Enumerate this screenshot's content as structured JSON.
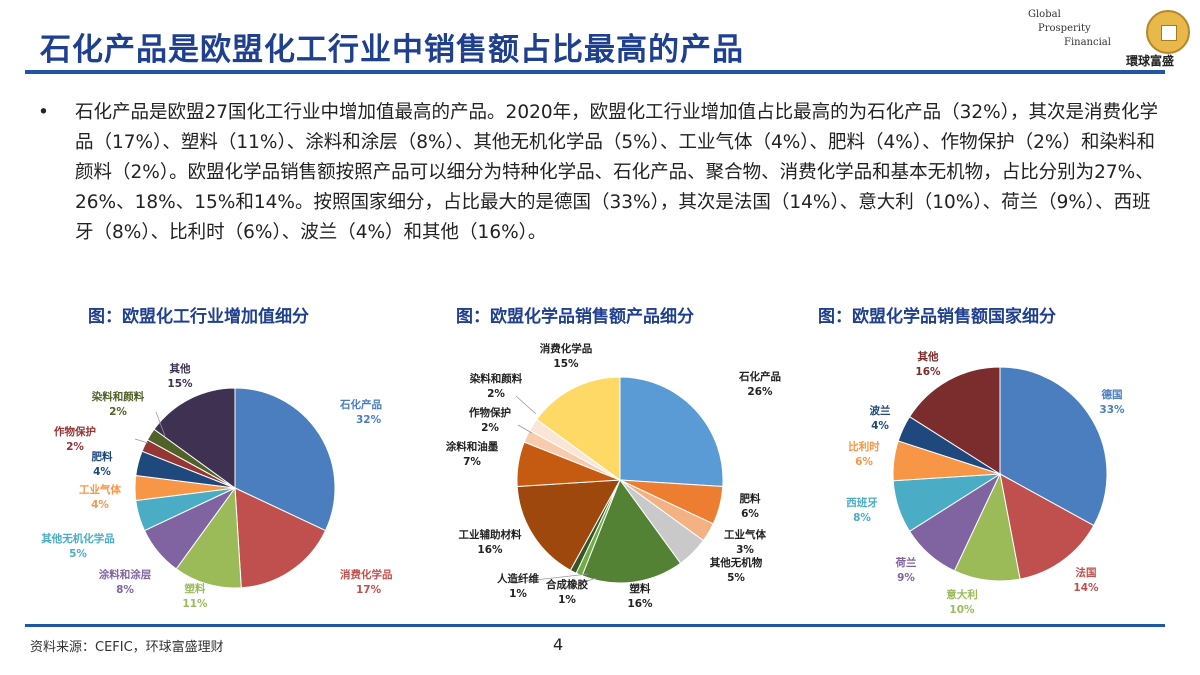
{
  "header": {
    "title": "石化产品是欧盟化工行业中销售额占比最高的产品",
    "logo": {
      "en_lines": [
        "Global",
        "Prosperity",
        "Financial"
      ],
      "cn": "環球富盛",
      "coin_chars": "環球富盛"
    }
  },
  "body": {
    "bullet": "•",
    "paragraph": "石化产品是欧盟27国化工行业中增加值最高的产品。2020年，欧盟化工行业增加值占比最高的为石化产品（32%），其次是消费化学品（17%）、塑料（11%）、涂料和涂层（8%）、其他无机化学品（5%）、工业气体（4%）、肥料（4%）、作物保护（2%）和染料和颜料（2%）。欧盟化学品销售额按照产品可以细分为特种化学品、石化产品、聚合物、消费化学品和基本无机物，占比分别为27%、26%、18%、15%和14%。按照国家细分，占比最大的是德国（33%），其次是法国（14%）、意大利（10%）、荷兰（9%）、西班牙（8%）、比利时（6%）、波兰（4%）和其他（16%）。"
  },
  "chart_data": [
    {
      "type": "pie",
      "title": "图：欧盟化工行业增加值细分",
      "categories": [
        "石化产品",
        "消费化学品",
        "塑料",
        "涂料和涂层",
        "其他无机化学品",
        "工业气体",
        "肥料",
        "作物保护",
        "染料和颜料",
        "其他"
      ],
      "values": [
        32,
        17,
        11,
        8,
        5,
        4,
        4,
        2,
        2,
        15
      ],
      "labels": [
        "32%",
        "17%",
        "11%",
        "8%",
        "5%",
        "4%",
        "4%",
        "2%",
        "2%",
        "15%"
      ],
      "colors": [
        "#4a7ebf",
        "#c0504d",
        "#9bbb59",
        "#8064a2",
        "#4bacc6",
        "#f79646",
        "#1f497d",
        "#943634",
        "#4f6228",
        "#3f3151"
      ],
      "start_angle_deg": 0,
      "direction": "clockwise"
    },
    {
      "type": "pie",
      "title": "图：欧盟化学品销售额产品细分",
      "categories": [
        "石化产品",
        "肥料",
        "工业气体",
        "其他无机物",
        "塑料",
        "合成橡胶",
        "人造纤维",
        "工业辅助材料",
        "涂料和油墨",
        "作物保护",
        "染料和颜料",
        "消费化学品"
      ],
      "values": [
        26,
        6,
        3,
        5,
        16,
        1,
        1,
        16,
        7,
        2,
        2,
        15
      ],
      "labels": [
        "26%",
        "6%",
        "3%",
        "5%",
        "16%",
        "1%",
        "1%",
        "16%",
        "7%",
        "2%",
        "2%",
        "15%"
      ],
      "colors": [
        "#5b9bd5",
        "#ed7d31",
        "#f4b183",
        "#c9c9c9",
        "#548235",
        "#70ad47",
        "#375623",
        "#9e480e",
        "#c55a11",
        "#f8cbad",
        "#fbe5d6",
        "#ffd966"
      ],
      "start_angle_deg": 0,
      "direction": "clockwise"
    },
    {
      "type": "pie",
      "title": "图：欧盟化学品销售额国家细分",
      "categories": [
        "德国",
        "法国",
        "意大利",
        "荷兰",
        "西班牙",
        "比利时",
        "波兰",
        "其他"
      ],
      "values": [
        33,
        14,
        10,
        9,
        8,
        6,
        4,
        16
      ],
      "labels": [
        "33%",
        "14%",
        "10%",
        "9%",
        "8%",
        "6%",
        "4%",
        "16%"
      ],
      "colors": [
        "#4a7ebf",
        "#c0504d",
        "#9bbb59",
        "#8064a2",
        "#4bacc6",
        "#f79646",
        "#1f497d",
        "#7b2c2c"
      ],
      "start_angle_deg": 0,
      "direction": "clockwise"
    }
  ],
  "footer": {
    "source": "资料来源：CEFIC，环球富盛理财",
    "page": "4"
  }
}
